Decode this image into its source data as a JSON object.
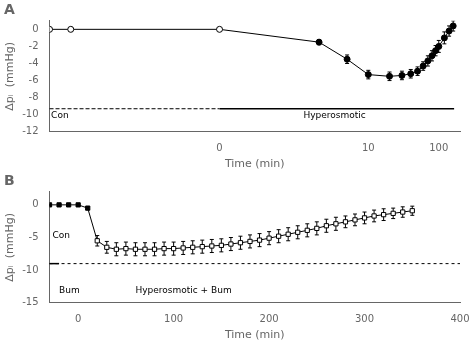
{
  "chart_data": [
    {
      "type": "line",
      "title": "A",
      "x_label": "Time (min)",
      "y_label": "Δpᵢ  (mmHg)",
      "log": "x",
      "grid": false,
      "color": "#000000",
      "xlim": [
        -20,
        200
      ],
      "xticks": [
        0,
        10,
        100
      ],
      "ylim": [
        -12,
        1
      ],
      "yticks": [
        0,
        -2,
        -4,
        -6,
        -8,
        -10,
        -12
      ],
      "series": [
        {
          "marker": "open_circle",
          "x": [
            -20,
            -10,
            0
          ],
          "values": [
            0.0,
            0.0,
            0.0
          ],
          "errors": [
            0.15,
            0.15,
            0.15
          ]
        },
        {
          "marker": "filled_circle",
          "x": [
            2,
            5,
            10,
            20,
            30,
            40,
            50,
            60,
            70,
            80,
            90,
            100,
            120,
            140,
            160
          ],
          "values": [
            -1.5,
            -3.5,
            -5.3,
            -5.5,
            -5.4,
            -5.2,
            -4.9,
            -4.3,
            -3.7,
            -3.1,
            -2.5,
            -2.0,
            -1.0,
            -0.2,
            0.4
          ],
          "errors": [
            0.3,
            0.5,
            0.5,
            0.5,
            0.5,
            0.5,
            0.5,
            0.5,
            0.6,
            0.6,
            0.6,
            0.7,
            0.7,
            0.6,
            0.6
          ]
        }
      ],
      "annotations": [
        {
          "x": [
            -20,
            0
          ],
          "y": -9.3,
          "line_style": "dashed"
        },
        {
          "x": [
            0,
            165
          ],
          "y": -9.3,
          "line_style": "solid"
        },
        {
          "text": "Con",
          "x": -19,
          "y": -9.6
        },
        {
          "text": "Hyperosmotic",
          "x": 1.2,
          "y": -9.6
        }
      ]
    },
    {
      "type": "line",
      "title": "B",
      "x_label": "Time (min)",
      "y_label": "Δpᵢ  (mmHg)",
      "grid": false,
      "color": "#000000",
      "xlim": [
        -30,
        400
      ],
      "xticks": [
        0,
        100,
        200,
        300,
        400
      ],
      "ylim": [
        -15,
        2
      ],
      "yticks": [
        0,
        -5,
        -10,
        -15
      ],
      "series": [
        {
          "marker": "filled_square",
          "x": [
            -30,
            -20,
            -10,
            0,
            10
          ],
          "values": [
            0.0,
            0.0,
            0.0,
            0.0,
            -0.5
          ],
          "errors": [
            0.1,
            0.1,
            0.1,
            0.1,
            0.2
          ]
        },
        {
          "marker": "open_square",
          "x": [
            20,
            30,
            40,
            50,
            60,
            70,
            80,
            90,
            100,
            110,
            120,
            130,
            140,
            150,
            160,
            170,
            180,
            190,
            200,
            210,
            220,
            230,
            240,
            250,
            260,
            270,
            280,
            290,
            300,
            310,
            320,
            330,
            340,
            350
          ],
          "values": [
            -5.5,
            -6.5,
            -6.8,
            -6.7,
            -6.8,
            -6.8,
            -6.8,
            -6.7,
            -6.7,
            -6.6,
            -6.5,
            -6.4,
            -6.3,
            -6.2,
            -6.0,
            -5.8,
            -5.6,
            -5.4,
            -5.1,
            -4.8,
            -4.5,
            -4.2,
            -3.9,
            -3.6,
            -3.2,
            -2.9,
            -2.6,
            -2.3,
            -2.0,
            -1.7,
            -1.5,
            -1.3,
            -1.1,
            -0.9
          ],
          "errors": [
            0.8,
            0.9,
            1.0,
            1.0,
            1.0,
            1.0,
            1.0,
            1.0,
            1.0,
            1.0,
            1.0,
            1.0,
            1.0,
            1.0,
            1.0,
            1.0,
            1.0,
            1.0,
            1.0,
            1.0,
            1.0,
            1.0,
            1.0,
            1.0,
            1.0,
            1.0,
            0.9,
            0.9,
            0.9,
            0.9,
            0.9,
            0.8,
            0.8,
            0.7
          ]
        }
      ],
      "annotations": [
        {
          "y": -9.0,
          "line_style": "dotted"
        },
        {
          "x": [
            -30,
            -20
          ],
          "y": -9.0,
          "line_style": "solid"
        },
        {
          "text": "Con",
          "x": -27,
          "y": -4.0
        },
        {
          "text": "Bum",
          "x": -20,
          "y": -12.5
        },
        {
          "text": "Hyperosmotic + Bum",
          "x": 60,
          "y": -12.5
        }
      ]
    }
  ]
}
